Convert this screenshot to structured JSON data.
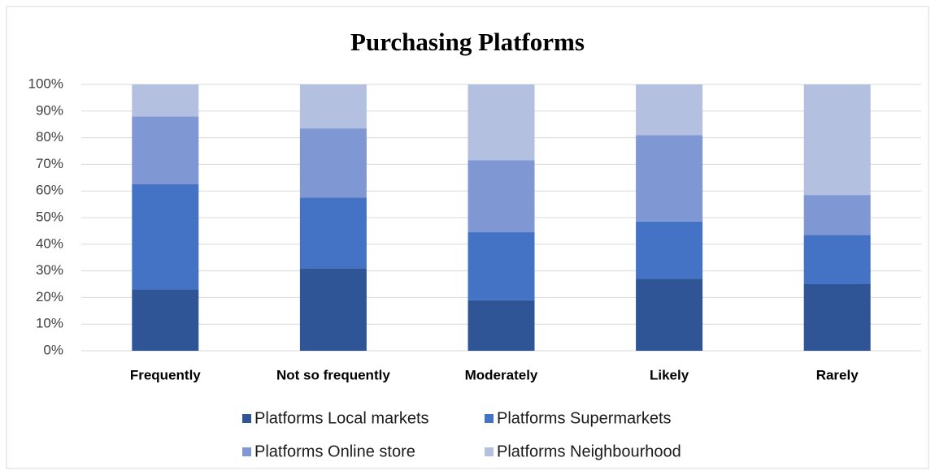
{
  "chart_data": {
    "type": "stacked_bar",
    "title": "Purchasing Platforms",
    "categories": [
      "Frequently",
      "Not so frequently",
      "Moderately",
      "Likely",
      "Rarely"
    ],
    "series": [
      {
        "name": "Platforms Local markets",
        "color": "#2f5597",
        "values": [
          23,
          31,
          19,
          27,
          25
        ]
      },
      {
        "name": "Platforms Supermarkets",
        "color": "#4472c4",
        "values": [
          39.5,
          26.5,
          25.5,
          21.5,
          18.5
        ]
      },
      {
        "name": "Platforms Online store",
        "color": "#7f97d3",
        "values": [
          25.5,
          26,
          27,
          32.5,
          15
        ]
      },
      {
        "name": "Platforms Neighbourhood",
        "color": "#b4c0e0",
        "values": [
          12,
          16.5,
          28.5,
          19,
          41.5
        ]
      }
    ],
    "ylim": [
      0,
      100
    ],
    "yticks": [
      {
        "value": 0,
        "label": "0%"
      },
      {
        "value": 10,
        "label": "10%"
      },
      {
        "value": 20,
        "label": "20%"
      },
      {
        "value": 30,
        "label": "30%"
      },
      {
        "value": 40,
        "label": "40%"
      },
      {
        "value": 50,
        "label": "50%"
      },
      {
        "value": 60,
        "label": "60%"
      },
      {
        "value": 70,
        "label": "70%"
      },
      {
        "value": 80,
        "label": "80%"
      },
      {
        "value": 90,
        "label": "90%"
      },
      {
        "value": 100,
        "label": "100%"
      }
    ],
    "grid": true,
    "legend": "bottom"
  }
}
